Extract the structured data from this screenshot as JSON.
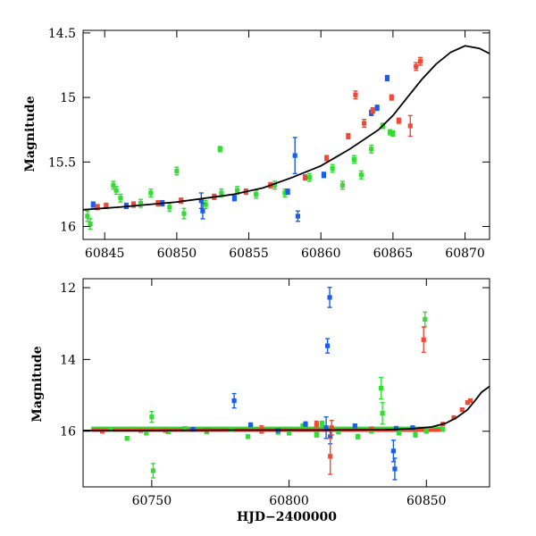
{
  "chart_data": [
    {
      "type": "scatter",
      "panel": "top",
      "xlabel": "",
      "ylabel": "Magnitude",
      "xlim": [
        60843.5,
        60871.7
      ],
      "ylim": [
        16.1,
        14.48
      ],
      "y_inverted": true,
      "xticks": [
        60845,
        60850,
        60855,
        60860,
        60865,
        60870
      ],
      "xtick_labels": [
        "60845",
        "60850",
        "60855",
        "60860",
        "60865",
        "60870"
      ],
      "yticks": [
        14.5,
        15,
        15.5,
        16
      ],
      "ytick_labels": [
        "14.5",
        "15",
        "15.5",
        "16"
      ],
      "colors": {
        "green": "#33dd33",
        "blue": "#1a5fe8",
        "red": "#f04a36",
        "model": "#000000"
      },
      "model_curve": {
        "x": [
          60843.5,
          60846,
          60848,
          60850,
          60852,
          60854,
          60856,
          60858,
          60860,
          60862,
          60864,
          60865,
          60866,
          60867,
          60868,
          60869,
          60870,
          60871,
          60871.7
        ],
        "y": [
          15.87,
          15.85,
          15.83,
          15.81,
          15.78,
          15.75,
          15.7,
          15.62,
          15.53,
          15.4,
          15.25,
          15.14,
          15.0,
          14.86,
          14.74,
          14.65,
          14.6,
          14.62,
          14.66
        ]
      },
      "series": [
        {
          "color_name": "green",
          "x": [
            60843.8,
            60844.0,
            60845.6,
            60845.8,
            60846.1,
            60847.5,
            60848.2,
            60849.5,
            60850.0,
            60850.5,
            60852.0,
            60853.0,
            60853.1,
            60854.2,
            60855.5,
            60856.8,
            60857.5,
            60859.2,
            60860.8,
            60861.5,
            60862.3,
            60862.8,
            60863.5,
            60864.3,
            60864.8,
            60865.0
          ],
          "y": [
            15.92,
            15.98,
            15.68,
            15.72,
            15.78,
            15.82,
            15.74,
            15.85,
            15.57,
            15.9,
            15.83,
            15.4,
            15.74,
            15.72,
            15.75,
            15.68,
            15.74,
            15.62,
            15.55,
            15.68,
            15.48,
            15.6,
            15.4,
            15.22,
            15.27,
            15.28
          ],
          "err": [
            0.04,
            0.04,
            0.03,
            0.03,
            0.03,
            0.03,
            0.03,
            0.03,
            0.03,
            0.04,
            0.03,
            0.02,
            0.03,
            0.03,
            0.03,
            0.03,
            0.03,
            0.03,
            0.03,
            0.03,
            0.03,
            0.03,
            0.03,
            0.02,
            0.02,
            0.02
          ]
        },
        {
          "color_name": "blue",
          "x": [
            60844.2,
            60846.5,
            60849.0,
            60851.7,
            60851.8,
            60854.0,
            60857.7,
            60858.2,
            60858.4,
            60860.2,
            60863.5,
            60863.9,
            60864.6
          ],
          "y": [
            15.83,
            15.84,
            15.82,
            15.8,
            15.88,
            15.78,
            15.73,
            15.45,
            15.92,
            15.6,
            15.12,
            15.08,
            14.85
          ],
          "err": [
            0.02,
            0.02,
            0.02,
            0.06,
            0.06,
            0.02,
            0.02,
            0.14,
            0.04,
            0.02,
            0.02,
            0.02,
            0.02
          ]
        },
        {
          "color_name": "red",
          "x": [
            60844.5,
            60845.1,
            60847.0,
            60848.7,
            60850.3,
            60852.6,
            60854.8,
            60856.5,
            60858.9,
            60860.4,
            60861.9,
            60862.4,
            60863.0,
            60863.6,
            60864.9,
            60865.4,
            60866.2,
            60866.6,
            60866.9
          ],
          "y": [
            15.85,
            15.84,
            15.83,
            15.82,
            15.8,
            15.77,
            15.73,
            15.68,
            15.62,
            15.47,
            15.3,
            14.98,
            15.2,
            15.1,
            15.0,
            15.18,
            15.22,
            14.76,
            14.72
          ],
          "err": [
            0.02,
            0.02,
            0.02,
            0.02,
            0.02,
            0.02,
            0.02,
            0.02,
            0.02,
            0.02,
            0.02,
            0.03,
            0.03,
            0.02,
            0.02,
            0.02,
            0.08,
            0.03,
            0.03
          ]
        }
      ]
    },
    {
      "type": "scatter",
      "panel": "bottom",
      "xlabel": "HJD−2400000",
      "ylabel": "Magnitude",
      "xlim": [
        60725,
        60873
      ],
      "ylim": [
        17.55,
        11.75
      ],
      "y_inverted": true,
      "xticks": [
        60750,
        60800,
        60850
      ],
      "xtick_labels": [
        "60750",
        "60800",
        "60850"
      ],
      "yticks": [
        12,
        14,
        16
      ],
      "ytick_labels": [
        "12",
        "14",
        "16"
      ],
      "colors": {
        "green": "#33dd33",
        "blue": "#1a5fe8",
        "red": "#f04a36",
        "model": "#000000"
      },
      "model_curve": {
        "x": [
          60725,
          60750,
          60780,
          60810,
          60835,
          60845,
          60852,
          60857,
          60861,
          60865,
          60868,
          60870,
          60873
        ],
        "y": [
          15.98,
          15.98,
          15.97,
          15.97,
          15.96,
          15.93,
          15.88,
          15.78,
          15.62,
          15.4,
          15.12,
          14.92,
          14.75
        ]
      },
      "baseline": {
        "x_start": 60728,
        "x_end": 60856,
        "y": 15.97
      },
      "series": [
        {
          "color_name": "green",
          "x": [
            60735,
            60741,
            60748,
            60750,
            60750.5,
            60756,
            60762,
            60770,
            60779,
            60785,
            60790,
            60796,
            60800,
            60805,
            60810,
            60812,
            60818,
            60825,
            60830,
            60833.5,
            60834,
            60840,
            60846,
            60849.5,
            60850,
            60856
          ],
          "y": [
            15.95,
            16.2,
            16.05,
            15.6,
            17.1,
            16.02,
            15.92,
            16.02,
            15.95,
            16.15,
            15.98,
            16.03,
            16.05,
            15.85,
            16.1,
            15.8,
            16.02,
            16.15,
            16.0,
            14.8,
            15.5,
            16.05,
            16.1,
            12.88,
            16.0,
            15.95
          ],
          "err": [
            0.04,
            0.05,
            0.05,
            0.15,
            0.2,
            0.04,
            0.04,
            0.04,
            0.04,
            0.05,
            0.04,
            0.05,
            0.05,
            0.05,
            0.06,
            0.08,
            0.05,
            0.06,
            0.05,
            0.3,
            0.3,
            0.05,
            0.06,
            0.2,
            0.05,
            0.05
          ]
        },
        {
          "color_name": "blue",
          "x": [
            60765,
            60780,
            60786,
            60796,
            60806,
            60813.5,
            60814,
            60814.8,
            60815,
            60824,
            60838,
            60838.5,
            60839,
            60845
          ],
          "y": [
            15.95,
            15.15,
            15.82,
            15.98,
            15.8,
            15.9,
            13.62,
            12.27,
            16.15,
            15.85,
            16.55,
            17.05,
            15.92,
            15.9
          ],
          "err": [
            0.05,
            0.2,
            0.05,
            0.04,
            0.06,
            0.3,
            0.2,
            0.28,
            0.2,
            0.05,
            0.3,
            0.3,
            0.05,
            0.04
          ]
        },
        {
          "color_name": "red",
          "x": [
            60732,
            60746,
            60755,
            60770,
            60790,
            60810,
            60815,
            60815.5,
            60830,
            60849,
            60856,
            60860,
            60863,
            60865,
            60866
          ],
          "y": [
            16.0,
            15.98,
            15.98,
            15.97,
            15.95,
            15.8,
            16.7,
            15.9,
            15.93,
            13.45,
            15.8,
            15.62,
            15.4,
            15.2,
            15.15
          ],
          "err": [
            0.03,
            0.03,
            0.03,
            0.03,
            0.1,
            0.08,
            0.5,
            0.2,
            0.04,
            0.35,
            0.03,
            0.03,
            0.03,
            0.03,
            0.03
          ]
        }
      ]
    }
  ]
}
